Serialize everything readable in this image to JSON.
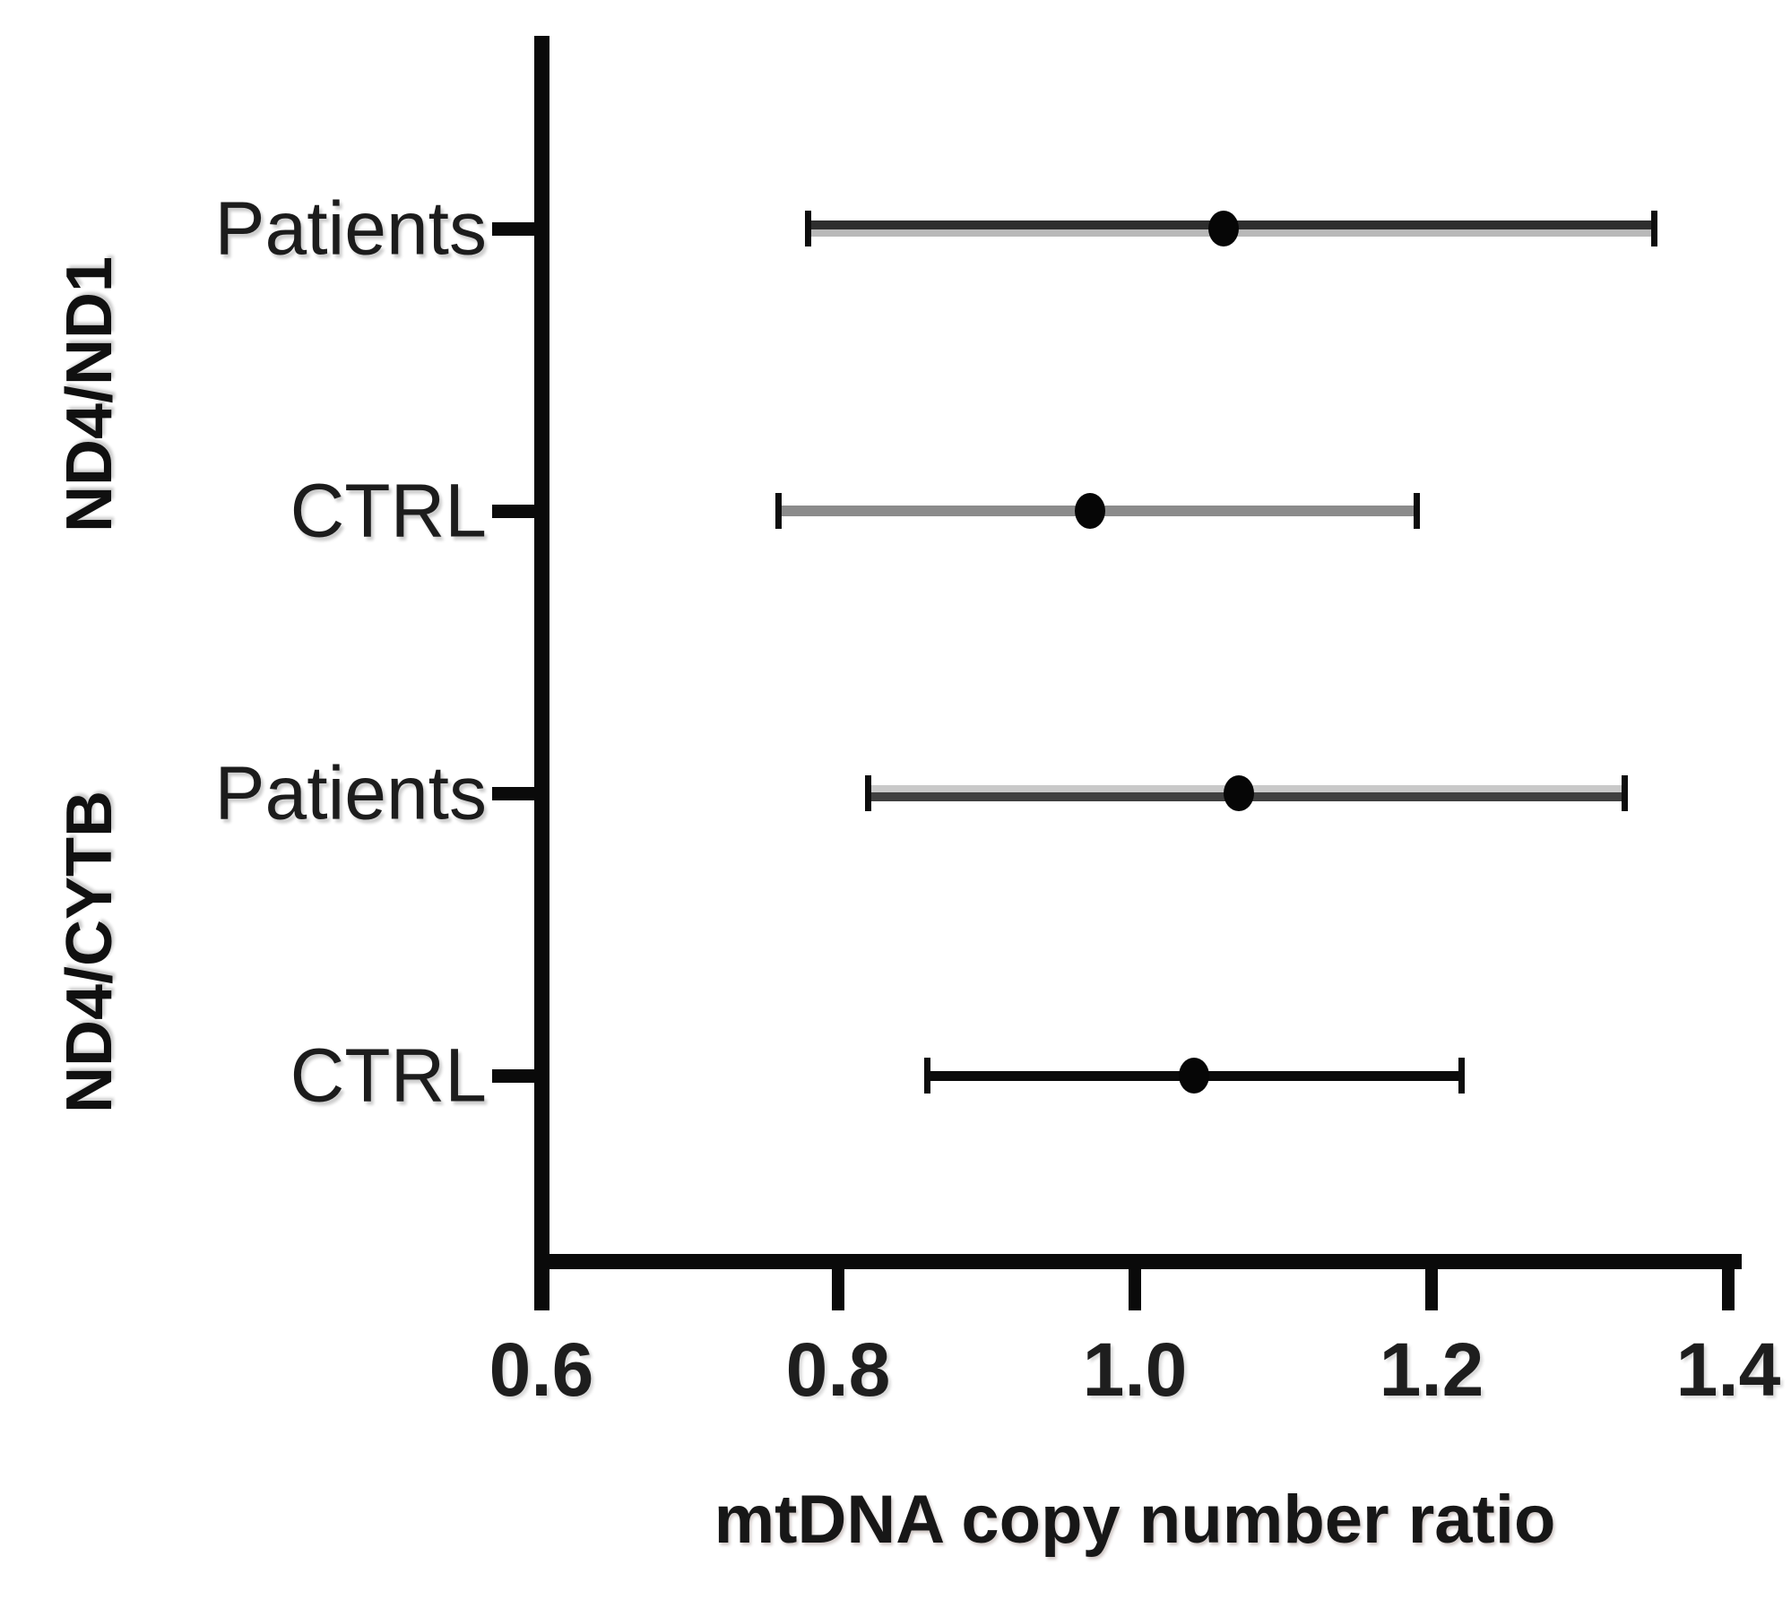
{
  "figure": {
    "background": "#ffffff",
    "axis_color": "#0a0a0a",
    "text_color": "#1c1c1c",
    "point_color": "#060606",
    "cap_color": "#0d0d0d"
  },
  "chart_data": {
    "type": "scatter",
    "subtype": "horizontal-error-bar-forest",
    "title": "",
    "xlabel": "mtDNA copy number ratio",
    "ylabel": "",
    "xlim": [
      0.6,
      1.4
    ],
    "x_ticks": [
      0.6,
      0.8,
      1.0,
      1.2,
      1.4
    ],
    "x_tick_labels": [
      "0.6",
      "0.8",
      "1.0",
      "1.2",
      "1.4"
    ],
    "grid": false,
    "legend": false,
    "groups": [
      {
        "label": "ND4/ND1",
        "rows": [
          {
            "label": "Patients",
            "mean": 1.06,
            "ci_low": 0.78,
            "ci_high": 1.35
          },
          {
            "label": "CTRL",
            "mean": 0.97,
            "ci_low": 0.76,
            "ci_high": 1.19
          }
        ]
      },
      {
        "label": "ND4/CYTB",
        "rows": [
          {
            "label": "Patients",
            "mean": 1.07,
            "ci_low": 0.82,
            "ci_high": 1.33
          },
          {
            "label": "CTRL",
            "mean": 1.04,
            "ci_low": 0.86,
            "ci_high": 1.22
          }
        ]
      }
    ],
    "bar_styles": [
      {
        "thickness": 18,
        "colors": [
          "#2e2e2e",
          "#b9b9b9"
        ],
        "split": 0.56
      },
      {
        "thickness": 12,
        "colors": [
          "#8b8b8b"
        ],
        "split": 1
      },
      {
        "thickness": 18,
        "colors": [
          "#c9c9c9",
          "#404040"
        ],
        "split": 0.44
      },
      {
        "thickness": 11,
        "colors": [
          "#0b0b0b"
        ],
        "split": 1
      }
    ]
  }
}
